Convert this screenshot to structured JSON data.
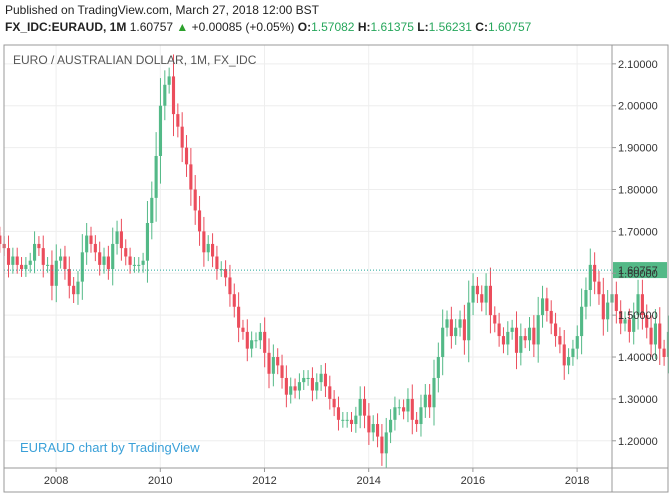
{
  "header": {
    "published": "Published on TradingView.com, March 27, 2018 12:00 BST",
    "symbol": "FX_IDC:EURAUD, 1M",
    "last": "1.60757",
    "change": "+0.00085 (+0.05%)",
    "o_label": "O:",
    "o_value": "1.57082",
    "h_label": "H:",
    "h_value": "1.61375",
    "l_label": "L:",
    "l_value": "1.56231",
    "c_label": "C:",
    "c_value": "1.60757",
    "arrow_icon": "triangle-up-icon"
  },
  "chart_data": {
    "type": "candlestick",
    "title": "EURO / AUSTRALIAN DOLLAR, 1M, FX_IDC",
    "watermark": "EURAUD chart by TradingView",
    "price_label": "1.60757",
    "x_ticks": [
      "2008",
      "2010",
      "2012",
      "2014",
      "2016",
      "2018"
    ],
    "y_ticks": [
      "1.20000",
      "1.30000",
      "1.40000",
      "1.50000",
      "1.60000",
      "1.70000",
      "1.80000",
      "1.90000",
      "2.00000",
      "2.10000"
    ],
    "ylim": [
      1.135,
      2.145
    ],
    "xlim": [
      2007.0,
      2018.67
    ],
    "colors": {
      "up": "#53b987",
      "down": "#eb4d5c",
      "grid": "#eeeeee",
      "price_line": "#26a69a"
    },
    "closes": [
      1.67,
      1.66,
      1.62,
      1.64,
      1.62,
      1.61,
      1.62,
      1.63,
      1.67,
      1.66,
      1.62,
      1.62,
      1.57,
      1.63,
      1.64,
      1.61,
      1.57,
      1.55,
      1.58,
      1.65,
      1.69,
      1.67,
      1.65,
      1.62,
      1.64,
      1.61,
      1.67,
      1.7,
      1.66,
      1.64,
      1.62,
      1.62,
      1.62,
      1.63,
      1.72,
      1.78,
      1.88,
      2.0,
      2.05,
      2.07,
      1.98,
      1.95,
      1.9,
      1.86,
      1.8,
      1.75,
      1.7,
      1.65,
      1.67,
      1.64,
      1.61,
      1.61,
      1.59,
      1.55,
      1.52,
      1.47,
      1.46,
      1.42,
      1.44,
      1.44,
      1.46,
      1.41,
      1.36,
      1.4,
      1.38,
      1.35,
      1.31,
      1.33,
      1.32,
      1.34,
      1.35,
      1.35,
      1.32,
      1.34,
      1.36,
      1.33,
      1.3,
      1.28,
      1.25,
      1.25,
      1.25,
      1.24,
      1.26,
      1.3,
      1.26,
      1.22,
      1.24,
      1.21,
      1.17,
      1.22,
      1.25,
      1.28,
      1.28,
      1.27,
      1.3,
      1.25,
      1.24,
      1.28,
      1.31,
      1.28,
      1.35,
      1.4,
      1.47,
      1.49,
      1.45,
      1.47,
      1.49,
      1.44,
      1.53,
      1.57,
      1.55,
      1.53,
      1.57,
      1.5,
      1.48,
      1.45,
      1.43,
      1.46,
      1.47,
      1.41,
      1.45,
      1.44,
      1.47,
      1.43,
      1.5,
      1.54,
      1.51,
      1.48,
      1.45,
      1.43,
      1.38,
      1.4,
      1.42,
      1.45,
      1.52,
      1.56,
      1.62,
      1.58,
      1.55,
      1.49,
      1.53,
      1.55,
      1.51,
      1.48,
      1.49,
      1.46,
      1.5,
      1.55,
      1.5,
      1.47,
      1.43,
      1.48,
      1.42,
      1.4,
      1.46,
      1.43,
      1.38,
      1.4,
      1.48,
      1.45,
      1.5,
      1.49,
      1.53,
      1.55,
      1.52,
      1.56,
      1.6,
      1.56,
      1.57,
      1.6
    ]
  }
}
